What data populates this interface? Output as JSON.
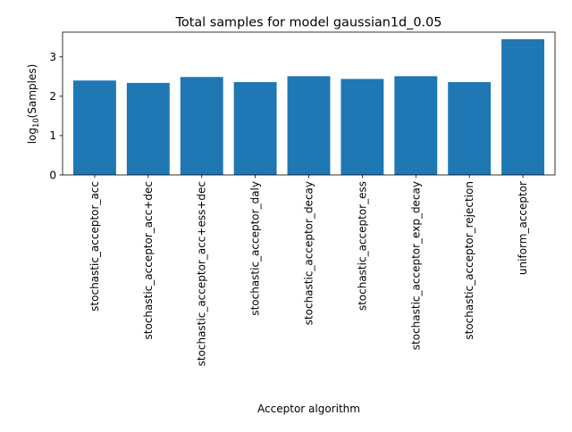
{
  "chart_data": {
    "type": "bar",
    "title": "Total samples for model gaussian1d_0.05",
    "xlabel": "Acceptor algorithm",
    "ylabel": {
      "prefix": "log",
      "subscript": "10",
      "suffix": "(Samples)"
    },
    "categories": [
      "stochastic_acceptor_acc",
      "stochastic_acceptor_acc+dec",
      "stochastic_acceptor_acc+ess+dec",
      "stochastic_acceptor_daly",
      "stochastic_acceptor_decay",
      "stochastic_acceptor_ess",
      "stochastic_acceptor_exp_decay",
      "stochastic_acceptor_rejection",
      "uniform_acceptor"
    ],
    "values": [
      2.4,
      2.34,
      2.49,
      2.36,
      2.51,
      2.44,
      2.51,
      2.36,
      3.45
    ],
    "ylim": [
      0,
      3.63
    ],
    "yticks": [
      0,
      1,
      2,
      3
    ],
    "grid": false,
    "legend": "none",
    "bar_color": "#1f77b4"
  }
}
